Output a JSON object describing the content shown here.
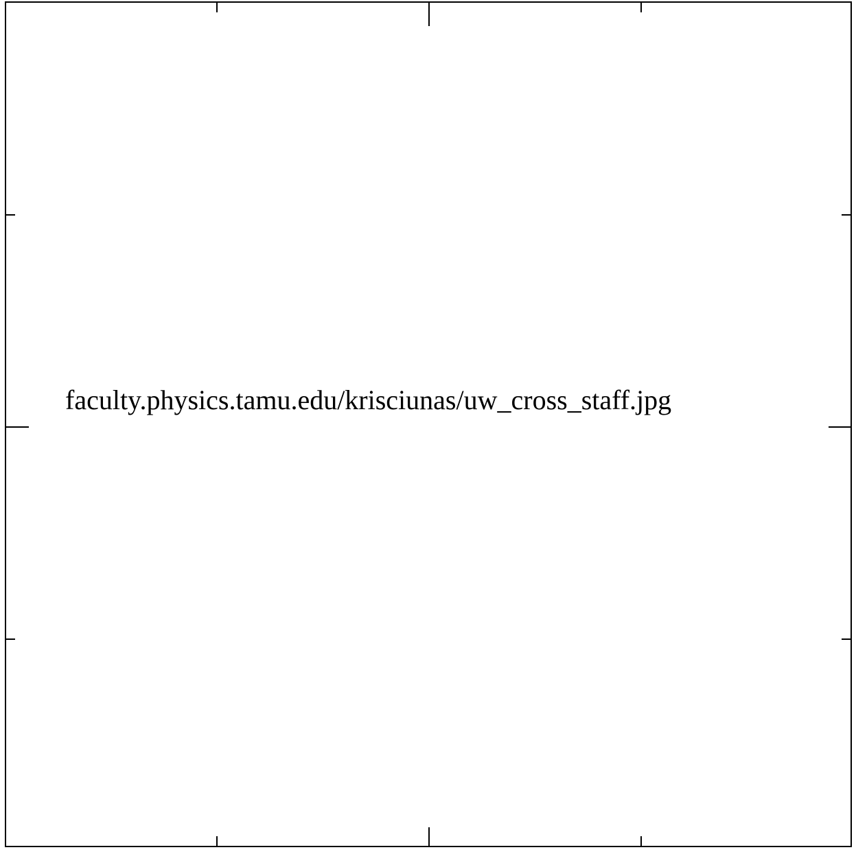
{
  "text": "faculty.physics.tamu.edu/krisciunas/uw_cross_staff.jpg"
}
